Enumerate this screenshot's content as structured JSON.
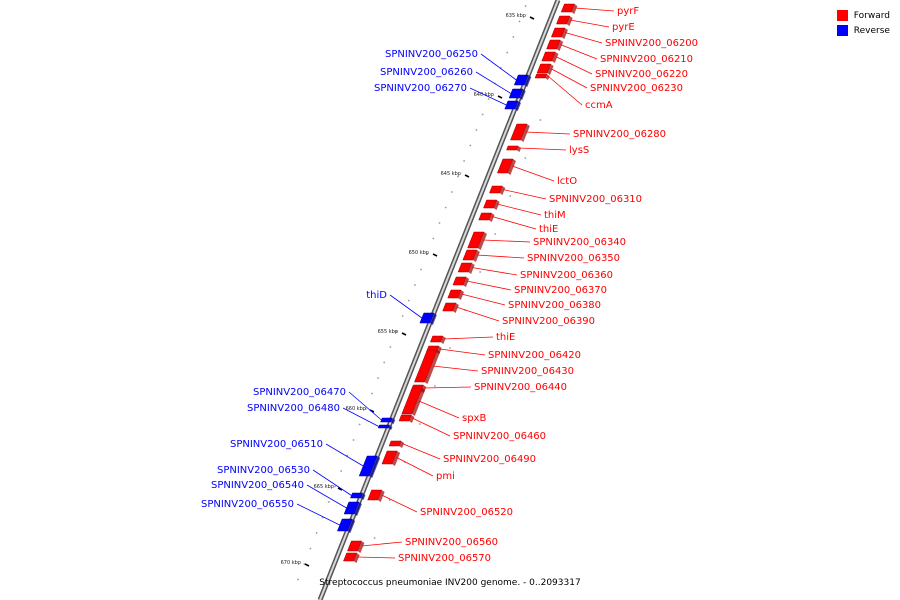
{
  "caption": "Streptococcus pneumoniae INV200 genome. - 0..2093317",
  "legend": [
    {
      "label": "Forward",
      "color": "#ff0000"
    },
    {
      "label": "Reverse",
      "color": "#0000ff"
    }
  ],
  "colors": {
    "forward": "#ff0000",
    "reverse": "#0000ff",
    "backbone": "#777777"
  },
  "ticks": [
    "635 kbp",
    "640 kbp",
    "645 kbp",
    "650 kbp",
    "655 kbp",
    "660 kbp",
    "665 kbp",
    "670 kbp"
  ],
  "genes": [
    {
      "name": "pyrF",
      "strand": "forward"
    },
    {
      "name": "pyrE",
      "strand": "forward"
    },
    {
      "name": "SPNINV200_06200",
      "strand": "forward"
    },
    {
      "name": "SPNINV200_06210",
      "strand": "forward"
    },
    {
      "name": "SPNINV200_06220",
      "strand": "forward"
    },
    {
      "name": "SPNINV200_06230",
      "strand": "forward"
    },
    {
      "name": "ccmA",
      "strand": "forward"
    },
    {
      "name": "SPNINV200_06250",
      "strand": "reverse"
    },
    {
      "name": "SPNINV200_06260",
      "strand": "reverse"
    },
    {
      "name": "SPNINV200_06270",
      "strand": "reverse"
    },
    {
      "name": "SPNINV200_06280",
      "strand": "forward"
    },
    {
      "name": "lysS",
      "strand": "forward"
    },
    {
      "name": "lctO",
      "strand": "forward"
    },
    {
      "name": "SPNINV200_06310",
      "strand": "forward"
    },
    {
      "name": "thiM",
      "strand": "forward"
    },
    {
      "name": "thiE",
      "strand": "forward"
    },
    {
      "name": "SPNINV200_06340",
      "strand": "forward"
    },
    {
      "name": "SPNINV200_06350",
      "strand": "forward"
    },
    {
      "name": "SPNINV200_06360",
      "strand": "forward"
    },
    {
      "name": "SPNINV200_06370",
      "strand": "forward"
    },
    {
      "name": "SPNINV200_06380",
      "strand": "forward"
    },
    {
      "name": "SPNINV200_06390",
      "strand": "forward"
    },
    {
      "name": "thiD",
      "strand": "reverse"
    },
    {
      "name": "thiE",
      "strand": "forward"
    },
    {
      "name": "SPNINV200_06420",
      "strand": "forward"
    },
    {
      "name": "SPNINV200_06430",
      "strand": "forward"
    },
    {
      "name": "SPNINV200_06440",
      "strand": "forward"
    },
    {
      "name": "spxB",
      "strand": "forward"
    },
    {
      "name": "SPNINV200_06460",
      "strand": "forward"
    },
    {
      "name": "SPNINV200_06470",
      "strand": "reverse"
    },
    {
      "name": "SPNINV200_06480",
      "strand": "reverse"
    },
    {
      "name": "SPNINV200_06490",
      "strand": "forward"
    },
    {
      "name": "SPNINV200_06510",
      "strand": "reverse"
    },
    {
      "name": "pmi",
      "strand": "forward"
    },
    {
      "name": "SPNINV200_06530",
      "strand": "reverse"
    },
    {
      "name": "SPNINV200_06540",
      "strand": "reverse"
    },
    {
      "name": "SPNINV200_06520",
      "strand": "forward"
    },
    {
      "name": "SPNINV200_06550",
      "strand": "reverse"
    },
    {
      "name": "SPNINV200_06560",
      "strand": "forward"
    },
    {
      "name": "SPNINV200_06570",
      "strand": "forward"
    }
  ]
}
